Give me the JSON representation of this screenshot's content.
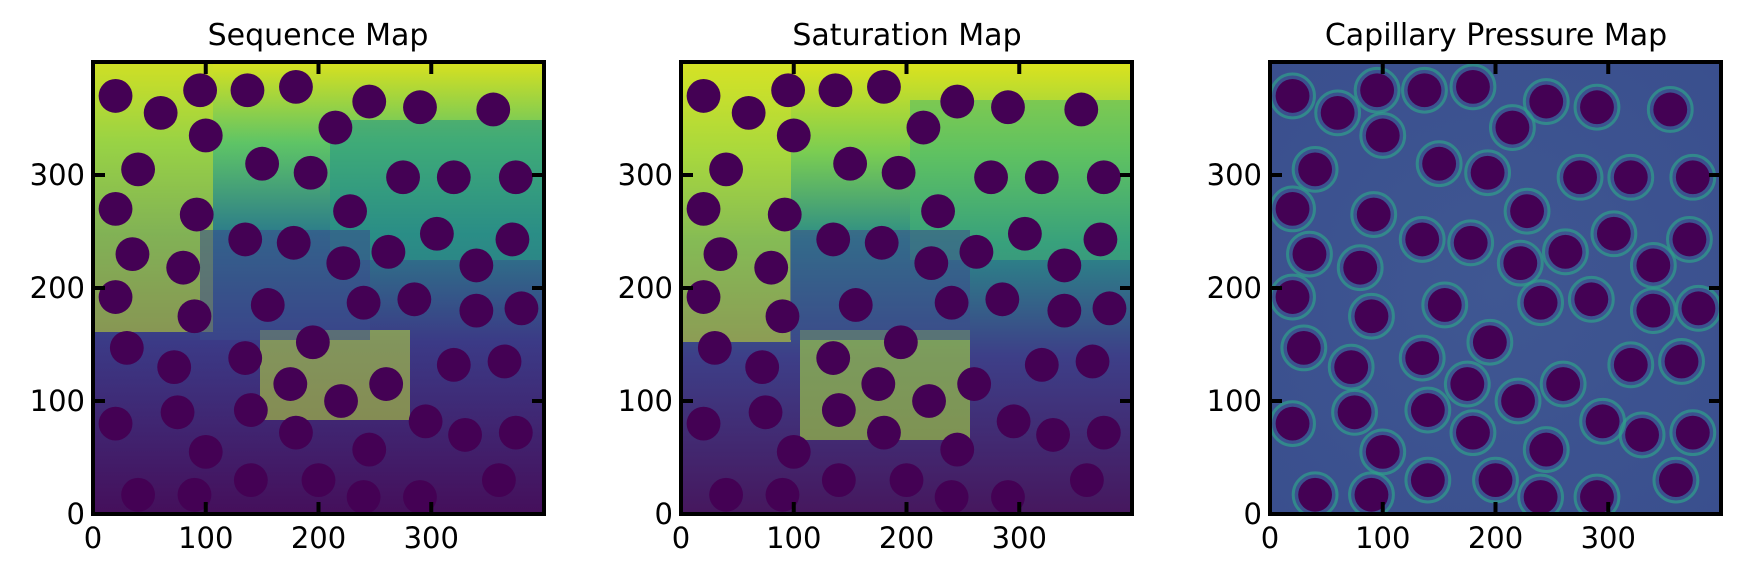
{
  "chart_data": [
    {
      "type": "heatmap",
      "title": "Sequence Map",
      "colormap": "viridis",
      "xlim": [
        0,
        400
      ],
      "ylim": [
        0,
        400
      ],
      "xticks": [
        0,
        100,
        200,
        300
      ],
      "yticks": [
        0,
        100,
        200,
        300
      ],
      "xtick_labels": [
        "0",
        "100",
        "200",
        "300"
      ],
      "ytick_labels": [
        "0",
        "100",
        "200",
        "300"
      ],
      "grid": false
    },
    {
      "type": "heatmap",
      "title": "Saturation Map",
      "colormap": "viridis",
      "xlim": [
        0,
        400
      ],
      "ylim": [
        0,
        400
      ],
      "xticks": [
        0,
        100,
        200,
        300
      ],
      "yticks": [
        0,
        100,
        200,
        300
      ],
      "xtick_labels": [
        "0",
        "100",
        "200",
        "300"
      ],
      "ytick_labels": [
        "0",
        "100",
        "200",
        "300"
      ],
      "grid": false
    },
    {
      "type": "heatmap",
      "title": "Capillary Pressure Map",
      "colormap": "viridis",
      "xlim": [
        0,
        400
      ],
      "ylim": [
        0,
        400
      ],
      "xticks": [
        0,
        100,
        200,
        300
      ],
      "yticks": [
        0,
        100,
        200,
        300
      ],
      "xtick_labels": [
        "0",
        "100",
        "200",
        "300"
      ],
      "ytick_labels": [
        "0",
        "100",
        "200",
        "300"
      ],
      "grid": false
    }
  ],
  "grains": {
    "color": "#440154",
    "radius": 15,
    "centers": [
      [
        20,
        370
      ],
      [
        95,
        375
      ],
      [
        137,
        375
      ],
      [
        180,
        378
      ],
      [
        60,
        355
      ],
      [
        245,
        365
      ],
      [
        290,
        360
      ],
      [
        355,
        358
      ],
      [
        100,
        335
      ],
      [
        215,
        342
      ],
      [
        40,
        305
      ],
      [
        150,
        310
      ],
      [
        193,
        302
      ],
      [
        275,
        298
      ],
      [
        320,
        298
      ],
      [
        375,
        298
      ],
      [
        20,
        270
      ],
      [
        92,
        265
      ],
      [
        228,
        268
      ],
      [
        305,
        248
      ],
      [
        372,
        243
      ],
      [
        35,
        230
      ],
      [
        135,
        243
      ],
      [
        178,
        240
      ],
      [
        262,
        232
      ],
      [
        80,
        218
      ],
      [
        222,
        222
      ],
      [
        340,
        220
      ],
      [
        20,
        192
      ],
      [
        90,
        175
      ],
      [
        155,
        185
      ],
      [
        240,
        187
      ],
      [
        285,
        190
      ],
      [
        340,
        180
      ],
      [
        380,
        182
      ],
      [
        30,
        147
      ],
      [
        195,
        152
      ],
      [
        72,
        130
      ],
      [
        135,
        138
      ],
      [
        365,
        135
      ],
      [
        320,
        132
      ],
      [
        175,
        115
      ],
      [
        260,
        115
      ],
      [
        220,
        100
      ],
      [
        75,
        90
      ],
      [
        140,
        92
      ],
      [
        295,
        82
      ],
      [
        20,
        80
      ],
      [
        180,
        72
      ],
      [
        330,
        70
      ],
      [
        375,
        72
      ],
      [
        100,
        55
      ],
      [
        245,
        57
      ],
      [
        40,
        17
      ],
      [
        90,
        17
      ],
      [
        140,
        30
      ],
      [
        200,
        30
      ],
      [
        240,
        15
      ],
      [
        290,
        15
      ],
      [
        360,
        30
      ]
    ]
  }
}
